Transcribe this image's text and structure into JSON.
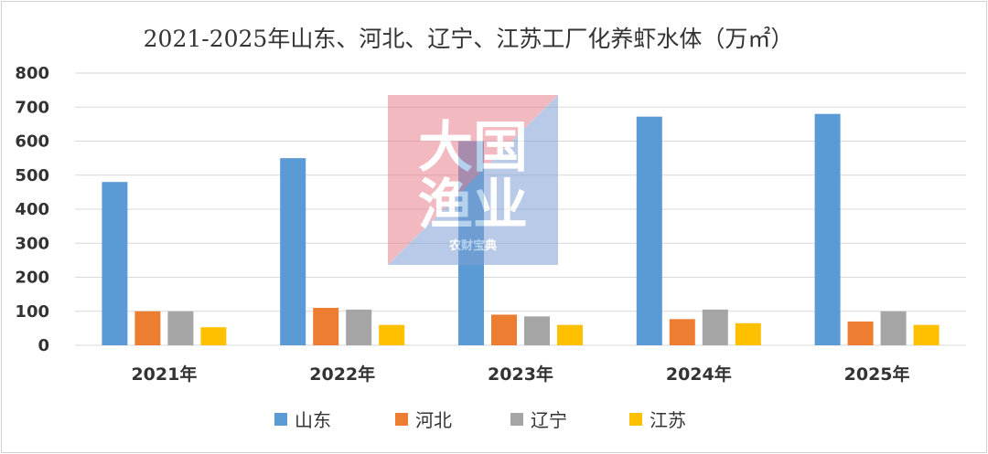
{
  "chart_data": {
    "type": "bar",
    "title": "2021-2025年山东、河北、辽宁、江苏工厂化养虾水体（万㎡）",
    "categories": [
      "2021年",
      "2022年",
      "2023年",
      "2024年",
      "2025年"
    ],
    "series": [
      {
        "name": "山东",
        "color": "#5b9bd5",
        "values": [
          480,
          550,
          600,
          672,
          680
        ]
      },
      {
        "name": "河北",
        "color": "#ed7d31",
        "values": [
          100,
          110,
          90,
          77,
          70
        ]
      },
      {
        "name": "辽宁",
        "color": "#a5a5a5",
        "values": [
          100,
          105,
          85,
          105,
          100
        ]
      },
      {
        "name": "江苏",
        "color": "#ffc000",
        "values": [
          53,
          60,
          60,
          65,
          60
        ]
      }
    ],
    "ylim": [
      0,
      800
    ],
    "yticks": [
      0,
      100,
      200,
      300,
      400,
      500,
      600,
      700,
      800
    ],
    "grid": true,
    "legend": "bottom"
  },
  "watermark": {
    "line1": "大国",
    "line2": "渔业",
    "line3": "农财宝典"
  }
}
